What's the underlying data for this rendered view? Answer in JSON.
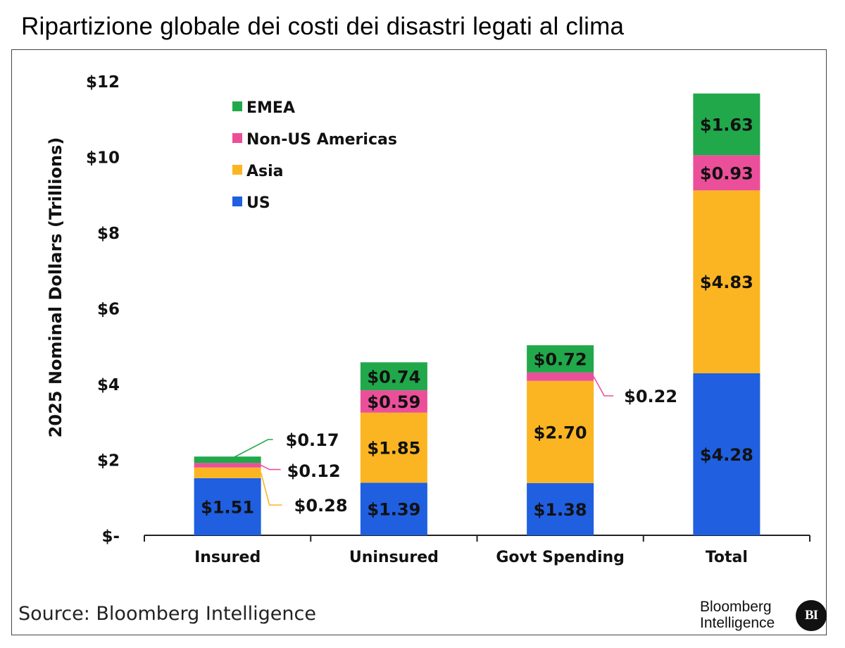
{
  "title": "Ripartizione globale dei costi dei disastri legati al clima",
  "source": "Source: Bloomberg Intelligence",
  "brand": {
    "line1": "Bloomberg",
    "line2": "Intelligence",
    "logo_text": "BI"
  },
  "chart_data": {
    "type": "bar",
    "stacked": true,
    "title": "Ripartizione globale dei costi dei disastri legati al clima",
    "xlabel": "",
    "ylabel": "2025 Nominal Dollars (Trillions)",
    "ylim": [
      0,
      12
    ],
    "y_ticks": [
      0,
      2,
      4,
      6,
      8,
      10,
      12
    ],
    "y_tick_labels": [
      "$-",
      "$2",
      "$4",
      "$6",
      "$8",
      "$10",
      "$12"
    ],
    "categories": [
      "Insured",
      "Uninsured",
      "Govt Spending",
      "Total"
    ],
    "series": [
      {
        "name": "US",
        "color": "#1f5fe0",
        "values": [
          1.51,
          1.39,
          1.38,
          4.28
        ],
        "labels": [
          "$1.51",
          "$1.39",
          "$1.38",
          "$4.28"
        ]
      },
      {
        "name": "Asia",
        "color": "#fbb522",
        "values": [
          0.28,
          1.85,
          2.7,
          4.83
        ],
        "labels": [
          "$0.28",
          "$1.85",
          "$2.70",
          "$4.83"
        ]
      },
      {
        "name": "Non-US Americas",
        "color": "#ec4f9a",
        "values": [
          0.12,
          0.59,
          0.22,
          0.93
        ],
        "labels": [
          "$0.12",
          "$0.59",
          "$0.22",
          "$0.93"
        ]
      },
      {
        "name": "EMEA",
        "color": "#21a84a",
        "values": [
          0.17,
          0.74,
          0.72,
          1.63
        ],
        "labels": [
          "$0.17",
          "$0.74",
          "$0.72",
          "$1.63"
        ]
      }
    ],
    "legend": [
      "EMEA",
      "Non-US Americas",
      "Asia",
      "US"
    ],
    "legend_position": "top-left",
    "grid": false
  }
}
